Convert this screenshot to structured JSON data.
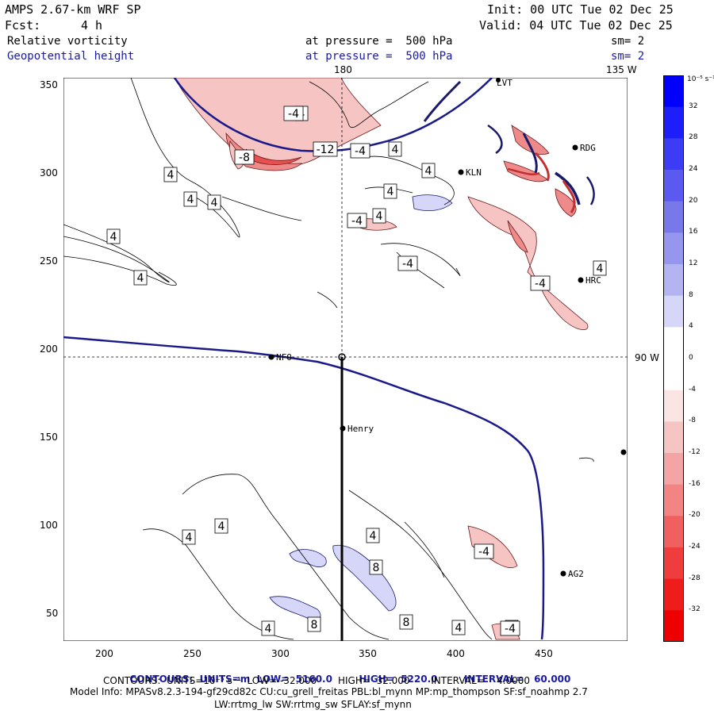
{
  "header": {
    "model": "AMPS 2.67-km WRF SP",
    "init": "Init: 00 UTC Tue 02 Dec 25",
    "fcst_label": "Fcst:",
    "fcst_value": "4 h",
    "valid": "Valid: 04 UTC Tue 02 Dec 25"
  },
  "fields": [
    {
      "name": "Relative vorticity",
      "level": "at pressure =  500 hPa",
      "smooth": "sm= 2"
    },
    {
      "name": "Geopotential height",
      "level": "at pressure =  500 hPa",
      "smooth": "sm= 2"
    }
  ],
  "graticule": {
    "lon_top": "180",
    "lon_top_right": "135 W",
    "lon_right": "90 W"
  },
  "axes": {
    "x_ticks": [
      "200",
      "250",
      "300",
      "350",
      "400",
      "450"
    ],
    "y_ticks": [
      "350",
      "300",
      "250",
      "200",
      "150",
      "100",
      "50"
    ]
  },
  "stations": [
    {
      "name": "LVT"
    },
    {
      "name": "RDG"
    },
    {
      "name": "KLN"
    },
    {
      "name": "HRC"
    },
    {
      "name": "NFO"
    },
    {
      "name": "Henry"
    },
    {
      "name": "AG2"
    }
  ],
  "contour_labels": [
    "4",
    "-4",
    "-12",
    "-8",
    "-4",
    "4",
    "4",
    "4",
    "4",
    "4",
    "4",
    "-4",
    "4",
    "4",
    "4",
    "-4",
    "-4",
    "4",
    "4",
    "4",
    "4",
    "8",
    "8",
    "4",
    "8",
    "4",
    "4",
    "-4",
    "-4"
  ],
  "colorbar": {
    "unit": "10⁻⁵ s⁻¹",
    "labels": [
      "32",
      "28",
      "24",
      "20",
      "16",
      "12",
      "8",
      "4",
      "0",
      "-4",
      "-8",
      "-12",
      "-16",
      "-20",
      "-24",
      "-28",
      "-32"
    ],
    "colors": [
      "#0000ff",
      "#1e1efa",
      "#3c3cf5",
      "#5a5af0",
      "#7878eb",
      "#9696ee",
      "#b4b4f2",
      "#d6d6f8",
      "#ffffff",
      "#ffffff",
      "#fbe4e4",
      "#f7c4c4",
      "#f4a4a4",
      "#f28484",
      "#f06060",
      "#ef3c3c",
      "#ef1c1c",
      "#ee0000"
    ]
  },
  "footer": {
    "line1_prefix": "CONTOURS:",
    "line1_units": "UNITS=m",
    "line1_low": "LOW=  5160.0",
    "line1_high": "HIGH=  5220.0",
    "line1_interval": "INTERVAL=   60.000",
    "line2": "CONTOURS:  UNITS=10⁻⁵ s⁻¹  LOW= -32.000       HIGH=  32.000       INTERVAL=    4.0000",
    "line3": "Model Info: MPASv8.2.3-194-gf29cd82c CU:cu_grell_freitas PBL:bl_mynn MP:mp_thompson SF:sf_noahmp 2.7",
    "line4": "LW:rrtmg_lw SW:rrtmg_sw SFLAY:sf_mynn"
  }
}
